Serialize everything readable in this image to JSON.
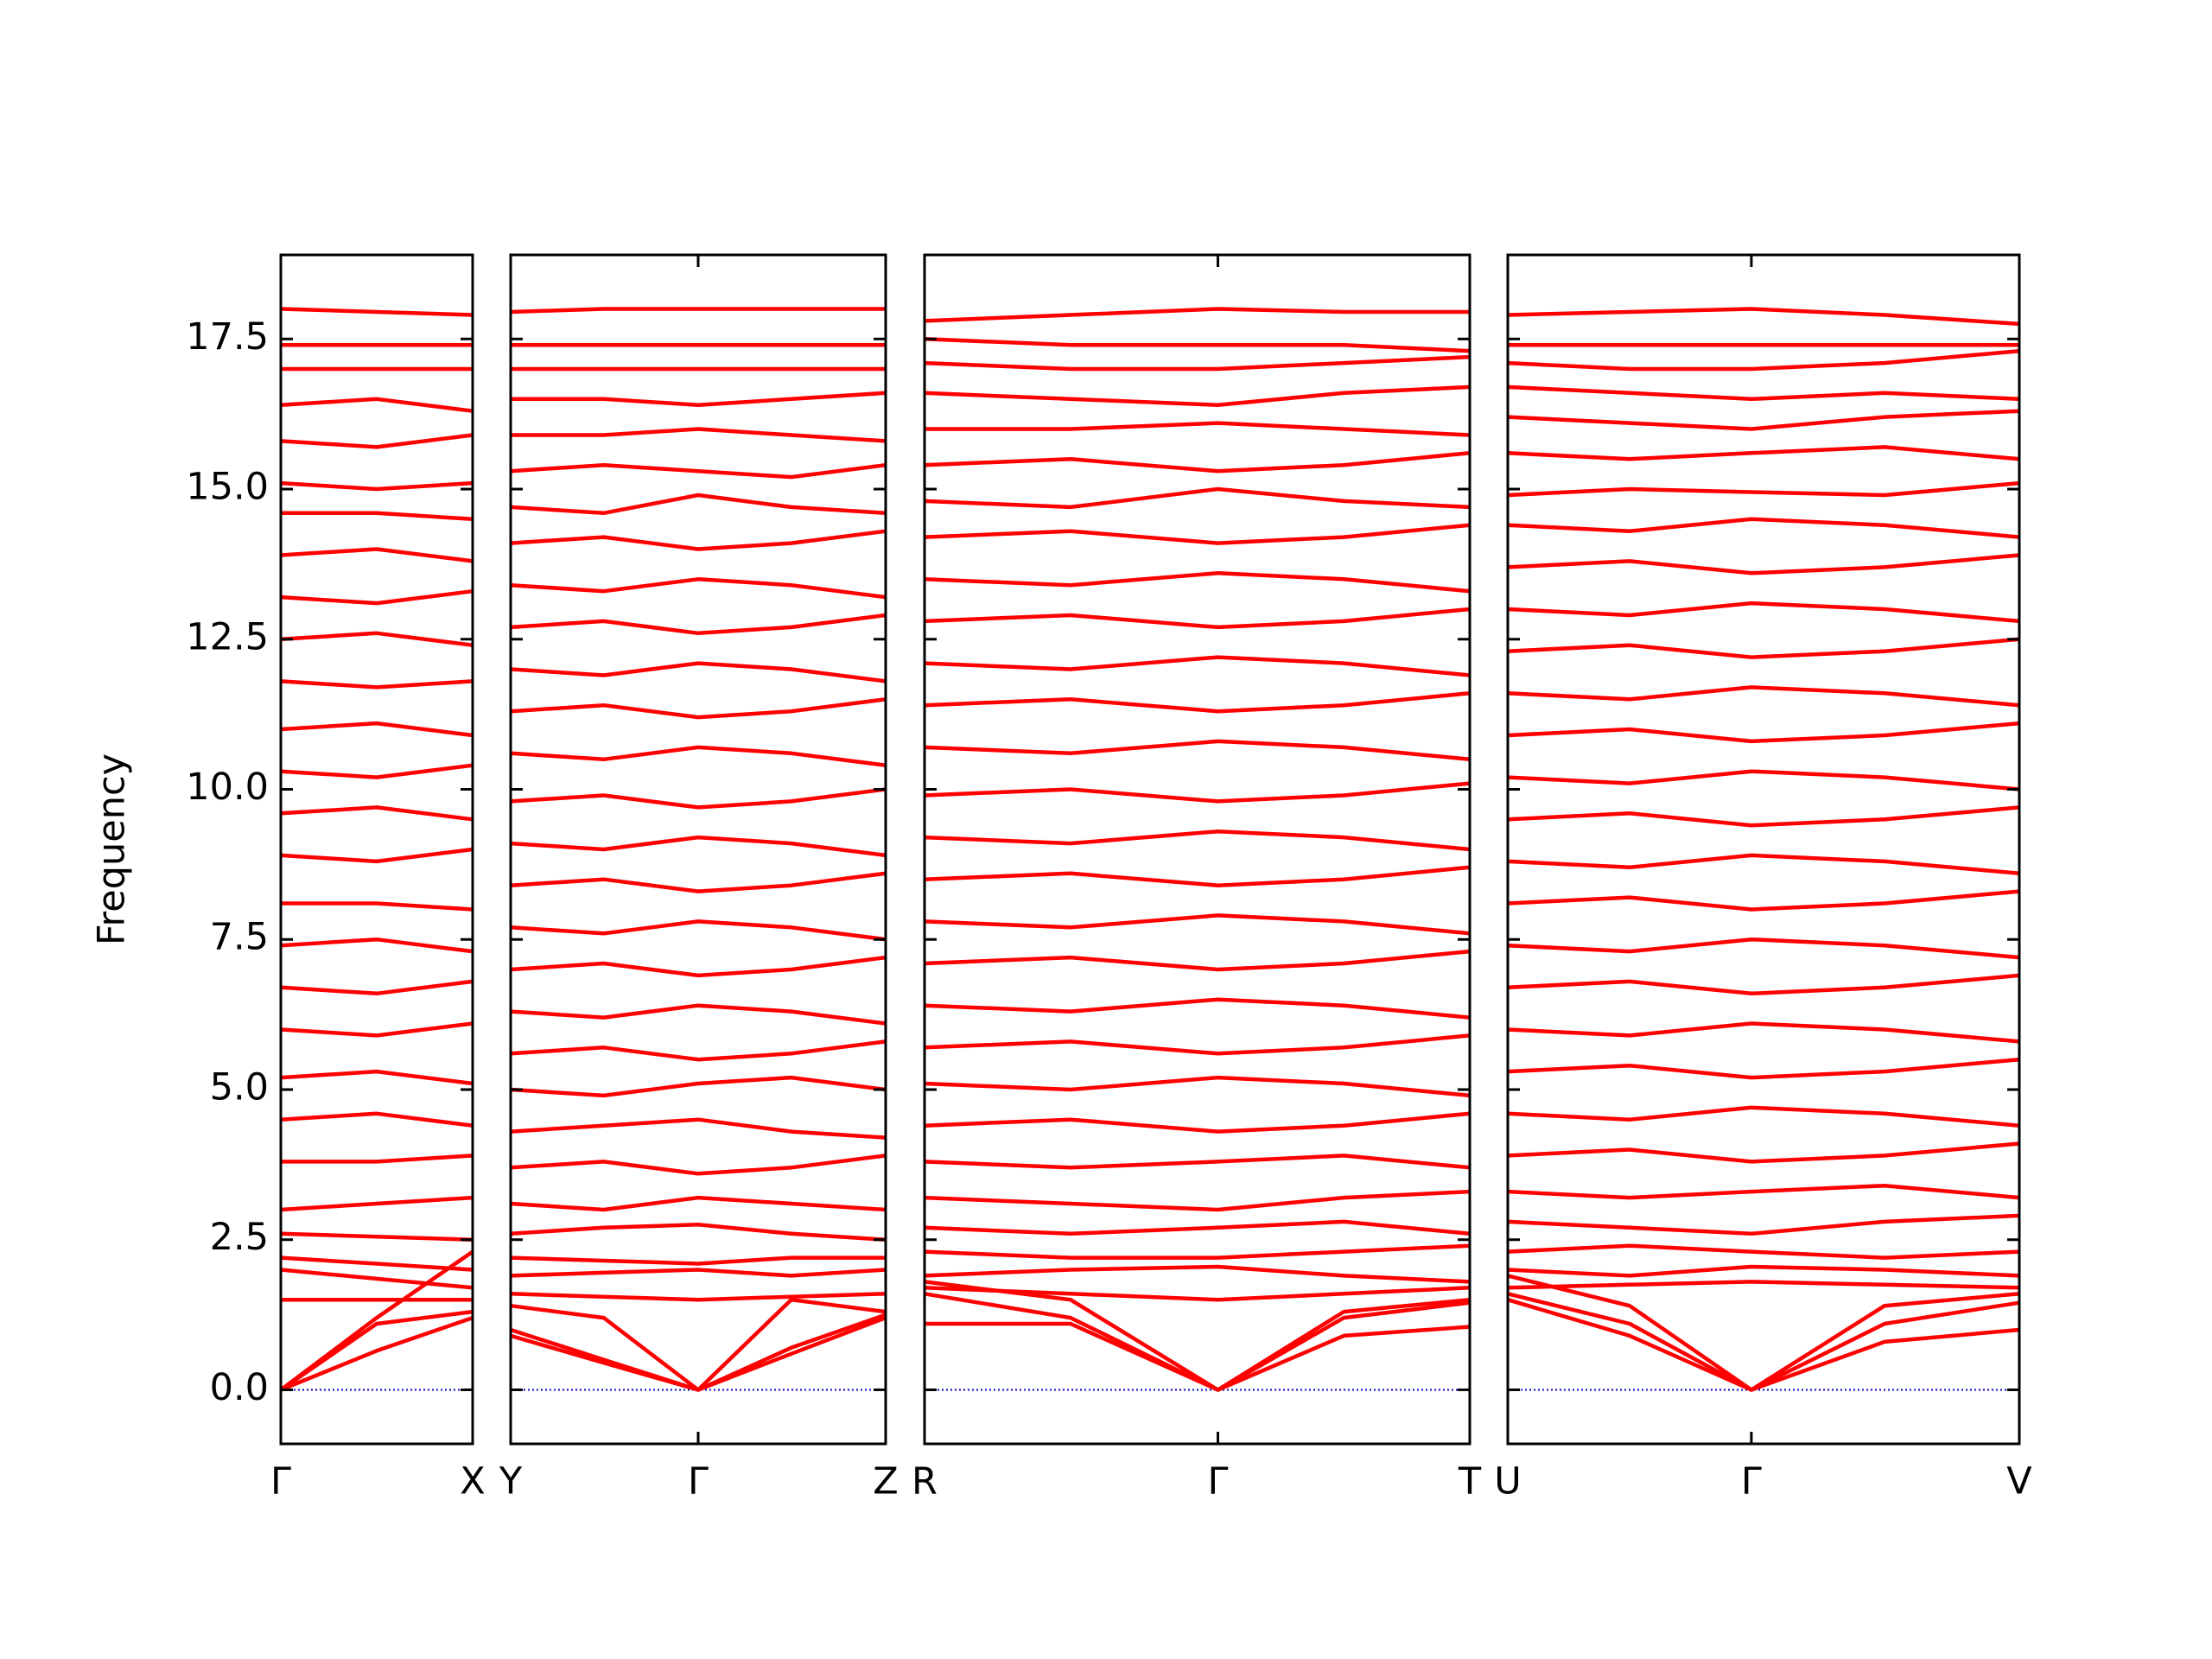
{
  "chart_data": [
    {
      "type": "line",
      "color": "#ff0000",
      "y_label": "Frequency",
      "ylim": [
        -0.9,
        18.9
      ],
      "yticks": [
        {
          "value": 0,
          "label": "0.0"
        },
        2.5,
        {
          "value": 5,
          "label": "5.0"
        },
        7.5,
        {
          "value": 10,
          "label": "10.0"
        },
        12.5,
        {
          "value": 15,
          "label": "15.0"
        },
        17.5
      ],
      "hline": 0,
      "hline_color": "#0000cc",
      "xlim": [
        0,
        1.34
      ],
      "xticks": [
        {
          "value": 0,
          "label": "Γ"
        },
        {
          "value": 1.34,
          "label": "X"
        }
      ],
      "x": [
        0,
        0.67,
        1.34
      ],
      "series": [
        {
          "values": [
            0,
            0.65,
            1.2
          ]
        },
        {
          "values": [
            0,
            1.1,
            1.3
          ]
        },
        {
          "values": [
            0,
            1.2,
            2.3
          ]
        },
        {
          "values": [
            1.5,
            1.5,
            1.5
          ]
        },
        {
          "values": [
            2.0,
            1.85,
            1.7
          ]
        },
        {
          "values": [
            2.2,
            2.1,
            2.0
          ]
        },
        {
          "values": [
            2.6,
            2.55,
            2.5
          ]
        },
        {
          "values": [
            3.0,
            3.1,
            3.2
          ]
        },
        {
          "values": [
            3.8,
            3.8,
            3.9
          ]
        },
        {
          "values": [
            4.5,
            4.6,
            4.4
          ]
        },
        {
          "values": [
            5.2,
            5.3,
            5.1
          ]
        },
        {
          "values": [
            6.0,
            5.9,
            6.1
          ]
        },
        {
          "values": [
            6.7,
            6.6,
            6.8
          ]
        },
        {
          "values": [
            7.4,
            7.5,
            7.3
          ]
        },
        {
          "values": [
            8.1,
            8.1,
            8.0
          ]
        },
        {
          "values": [
            8.9,
            8.8,
            9.0
          ]
        },
        {
          "values": [
            9.6,
            9.7,
            9.5
          ]
        },
        {
          "values": [
            10.3,
            10.2,
            10.4
          ]
        },
        {
          "values": [
            11.0,
            11.1,
            10.9
          ]
        },
        {
          "values": [
            11.8,
            11.7,
            11.8
          ]
        },
        {
          "values": [
            12.5,
            12.6,
            12.4
          ]
        },
        {
          "values": [
            13.2,
            13.1,
            13.3
          ]
        },
        {
          "values": [
            13.9,
            14.0,
            13.8
          ]
        },
        {
          "values": [
            14.6,
            14.6,
            14.5
          ]
        },
        {
          "values": [
            15.1,
            15.0,
            15.1
          ]
        },
        {
          "values": [
            15.8,
            15.7,
            15.9
          ]
        },
        {
          "values": [
            16.4,
            16.5,
            16.3
          ]
        },
        {
          "values": [
            17.0,
            17.0,
            17.0
          ]
        },
        {
          "values": [
            17.4,
            17.4,
            17.4
          ]
        },
        {
          "values": [
            18.0,
            17.95,
            17.9
          ]
        }
      ]
    },
    {
      "type": "line",
      "color": "#ff0000",
      "ylim": [
        -0.9,
        18.9
      ],
      "xlim": [
        0,
        2.62
      ],
      "xticks": [
        {
          "value": 0,
          "label": "Y"
        },
        {
          "value": 1.31,
          "label": "Γ"
        },
        {
          "value": 2.62,
          "label": "Z"
        }
      ],
      "x": [
        0,
        0.65,
        1.31,
        1.96,
        2.62
      ],
      "series": [
        {
          "values": [
            1.0,
            0.5,
            0,
            0.6,
            1.2
          ]
        },
        {
          "values": [
            0.9,
            0.45,
            0,
            0.7,
            1.25
          ]
        },
        {
          "values": [
            1.4,
            1.2,
            0,
            1.5,
            1.3
          ]
        },
        {
          "values": [
            1.6,
            1.55,
            1.5,
            1.55,
            1.6
          ]
        },
        {
          "values": [
            1.9,
            1.95,
            2.0,
            1.9,
            2.0
          ]
        },
        {
          "values": [
            2.2,
            2.15,
            2.1,
            2.2,
            2.2
          ]
        },
        {
          "values": [
            2.6,
            2.7,
            2.75,
            2.6,
            2.5
          ]
        },
        {
          "values": [
            3.1,
            3.0,
            3.2,
            3.1,
            3.0
          ]
        },
        {
          "values": [
            3.7,
            3.8,
            3.6,
            3.7,
            3.9
          ]
        },
        {
          "values": [
            4.3,
            4.4,
            4.5,
            4.3,
            4.2
          ]
        },
        {
          "values": [
            5.0,
            4.9,
            5.1,
            5.2,
            5.0
          ]
        },
        {
          "values": [
            5.6,
            5.7,
            5.5,
            5.6,
            5.8
          ]
        },
        {
          "values": [
            6.3,
            6.2,
            6.4,
            6.3,
            6.1
          ]
        },
        {
          "values": [
            7.0,
            7.1,
            6.9,
            7.0,
            7.2
          ]
        },
        {
          "values": [
            7.7,
            7.6,
            7.8,
            7.7,
            7.5
          ]
        },
        {
          "values": [
            8.4,
            8.5,
            8.3,
            8.4,
            8.6
          ]
        },
        {
          "values": [
            9.1,
            9.0,
            9.2,
            9.1,
            8.9
          ]
        },
        {
          "values": [
            9.8,
            9.9,
            9.7,
            9.8,
            10.0
          ]
        },
        {
          "values": [
            10.6,
            10.5,
            10.7,
            10.6,
            10.4
          ]
        },
        {
          "values": [
            11.3,
            11.4,
            11.2,
            11.3,
            11.5
          ]
        },
        {
          "values": [
            12.0,
            11.9,
            12.1,
            12.0,
            11.8
          ]
        },
        {
          "values": [
            12.7,
            12.8,
            12.6,
            12.7,
            12.9
          ]
        },
        {
          "values": [
            13.4,
            13.3,
            13.5,
            13.4,
            13.2
          ]
        },
        {
          "values": [
            14.1,
            14.2,
            14.0,
            14.1,
            14.3
          ]
        },
        {
          "values": [
            14.7,
            14.6,
            14.9,
            14.7,
            14.6
          ]
        },
        {
          "values": [
            15.3,
            15.4,
            15.3,
            15.2,
            15.4
          ]
        },
        {
          "values": [
            15.9,
            15.9,
            16.0,
            15.9,
            15.8
          ]
        },
        {
          "values": [
            16.5,
            16.5,
            16.4,
            16.5,
            16.6
          ]
        },
        {
          "values": [
            17.0,
            17.0,
            17.0,
            17.0,
            17.0
          ]
        },
        {
          "values": [
            17.4,
            17.4,
            17.4,
            17.4,
            17.4
          ]
        },
        {
          "values": [
            17.95,
            18.0,
            18.0,
            18.0,
            18.0
          ]
        }
      ]
    },
    {
      "type": "line",
      "color": "#ff0000",
      "ylim": [
        -0.9,
        18.9
      ],
      "xlim": [
        0,
        3.81
      ],
      "xticks": [
        {
          "value": 0,
          "label": "R"
        },
        {
          "value": 2.05,
          "label": "Γ"
        },
        {
          "value": 3.81,
          "label": "T"
        }
      ],
      "x": [
        0,
        1.02,
        2.05,
        2.93,
        3.81
      ],
      "series": [
        {
          "values": [
            1.1,
            1.1,
            0,
            0.9,
            1.05
          ]
        },
        {
          "values": [
            1.6,
            1.2,
            0,
            1.2,
            1.45
          ]
        },
        {
          "values": [
            1.8,
            1.5,
            0,
            1.3,
            1.5
          ]
        },
        {
          "values": [
            1.7,
            1.6,
            1.5,
            1.6,
            1.7
          ]
        },
        {
          "values": [
            1.9,
            2.0,
            2.05,
            1.9,
            1.8
          ]
        },
        {
          "values": [
            2.3,
            2.2,
            2.2,
            2.3,
            2.4
          ]
        },
        {
          "values": [
            2.7,
            2.6,
            2.7,
            2.8,
            2.6
          ]
        },
        {
          "values": [
            3.2,
            3.1,
            3.0,
            3.2,
            3.3
          ]
        },
        {
          "values": [
            3.8,
            3.7,
            3.8,
            3.9,
            3.7
          ]
        },
        {
          "values": [
            4.4,
            4.5,
            4.3,
            4.4,
            4.6
          ]
        },
        {
          "values": [
            5.1,
            5.0,
            5.2,
            5.1,
            4.9
          ]
        },
        {
          "values": [
            5.7,
            5.8,
            5.6,
            5.7,
            5.9
          ]
        },
        {
          "values": [
            6.4,
            6.3,
            6.5,
            6.4,
            6.2
          ]
        },
        {
          "values": [
            7.1,
            7.2,
            7.0,
            7.1,
            7.3
          ]
        },
        {
          "values": [
            7.8,
            7.7,
            7.9,
            7.8,
            7.6
          ]
        },
        {
          "values": [
            8.5,
            8.6,
            8.4,
            8.5,
            8.7
          ]
        },
        {
          "values": [
            9.2,
            9.1,
            9.3,
            9.2,
            9.0
          ]
        },
        {
          "values": [
            9.9,
            10.0,
            9.8,
            9.9,
            10.1
          ]
        },
        {
          "values": [
            10.7,
            10.6,
            10.8,
            10.7,
            10.5
          ]
        },
        {
          "values": [
            11.4,
            11.5,
            11.3,
            11.4,
            11.6
          ]
        },
        {
          "values": [
            12.1,
            12.0,
            12.2,
            12.1,
            11.9
          ]
        },
        {
          "values": [
            12.8,
            12.9,
            12.7,
            12.8,
            13.0
          ]
        },
        {
          "values": [
            13.5,
            13.4,
            13.6,
            13.5,
            13.3
          ]
        },
        {
          "values": [
            14.2,
            14.3,
            14.1,
            14.2,
            14.4
          ]
        },
        {
          "values": [
            14.8,
            14.7,
            15.0,
            14.8,
            14.7
          ]
        },
        {
          "values": [
            15.4,
            15.5,
            15.3,
            15.4,
            15.6
          ]
        },
        {
          "values": [
            16.0,
            16.0,
            16.1,
            16.0,
            15.9
          ]
        },
        {
          "values": [
            16.6,
            16.5,
            16.4,
            16.6,
            16.7
          ]
        },
        {
          "values": [
            17.1,
            17.0,
            17.0,
            17.1,
            17.2
          ]
        },
        {
          "values": [
            17.5,
            17.4,
            17.4,
            17.4,
            17.3
          ]
        },
        {
          "values": [
            17.8,
            17.9,
            18.0,
            17.95,
            17.95
          ]
        }
      ]
    },
    {
      "type": "line",
      "color": "#ff0000",
      "ylim": [
        -0.9,
        18.9
      ],
      "xlim": [
        0,
        3.57
      ],
      "xticks": [
        {
          "value": 0,
          "label": "U"
        },
        {
          "value": 1.7,
          "label": "Γ"
        },
        {
          "value": 3.57,
          "label": "V"
        }
      ],
      "x": [
        0,
        0.85,
        1.7,
        2.63,
        3.57
      ],
      "series": [
        {
          "values": [
            1.5,
            0.9,
            0,
            0.8,
            1.0
          ]
        },
        {
          "values": [
            1.6,
            1.1,
            0,
            1.1,
            1.45
          ]
        },
        {
          "values": [
            1.9,
            1.4,
            0,
            1.4,
            1.6
          ]
        },
        {
          "values": [
            1.7,
            1.75,
            1.8,
            1.75,
            1.7
          ]
        },
        {
          "values": [
            2.0,
            1.9,
            2.05,
            2.0,
            1.9
          ]
        },
        {
          "values": [
            2.3,
            2.4,
            2.3,
            2.2,
            2.3
          ]
        },
        {
          "values": [
            2.8,
            2.7,
            2.6,
            2.8,
            2.9
          ]
        },
        {
          "values": [
            3.3,
            3.2,
            3.3,
            3.4,
            3.2
          ]
        },
        {
          "values": [
            3.9,
            4.0,
            3.8,
            3.9,
            4.1
          ]
        },
        {
          "values": [
            4.6,
            4.5,
            4.7,
            4.6,
            4.4
          ]
        },
        {
          "values": [
            5.3,
            5.4,
            5.2,
            5.3,
            5.5
          ]
        },
        {
          "values": [
            6.0,
            5.9,
            6.1,
            6.0,
            5.8
          ]
        },
        {
          "values": [
            6.7,
            6.8,
            6.6,
            6.7,
            6.9
          ]
        },
        {
          "values": [
            7.4,
            7.3,
            7.5,
            7.4,
            7.2
          ]
        },
        {
          "values": [
            8.1,
            8.2,
            8.0,
            8.1,
            8.3
          ]
        },
        {
          "values": [
            8.8,
            8.7,
            8.9,
            8.8,
            8.6
          ]
        },
        {
          "values": [
            9.5,
            9.6,
            9.4,
            9.5,
            9.7
          ]
        },
        {
          "values": [
            10.2,
            10.1,
            10.3,
            10.2,
            10.0
          ]
        },
        {
          "values": [
            10.9,
            11.0,
            10.8,
            10.9,
            11.1
          ]
        },
        {
          "values": [
            11.6,
            11.5,
            11.7,
            11.6,
            11.4
          ]
        },
        {
          "values": [
            12.3,
            12.4,
            12.2,
            12.3,
            12.5
          ]
        },
        {
          "values": [
            13.0,
            12.9,
            13.1,
            13.0,
            12.8
          ]
        },
        {
          "values": [
            13.7,
            13.8,
            13.6,
            13.7,
            13.9
          ]
        },
        {
          "values": [
            14.4,
            14.3,
            14.5,
            14.4,
            14.2
          ]
        },
        {
          "values": [
            14.9,
            15.0,
            14.95,
            14.9,
            15.1
          ]
        },
        {
          "values": [
            15.6,
            15.5,
            15.6,
            15.7,
            15.5
          ]
        },
        {
          "values": [
            16.2,
            16.1,
            16.0,
            16.2,
            16.3
          ]
        },
        {
          "values": [
            16.7,
            16.6,
            16.5,
            16.6,
            16.5
          ]
        },
        {
          "values": [
            17.1,
            17.0,
            17.0,
            17.1,
            17.3
          ]
        },
        {
          "values": [
            17.4,
            17.4,
            17.4,
            17.4,
            17.4
          ]
        },
        {
          "values": [
            17.9,
            17.95,
            18.0,
            17.9,
            17.75
          ]
        }
      ]
    }
  ]
}
